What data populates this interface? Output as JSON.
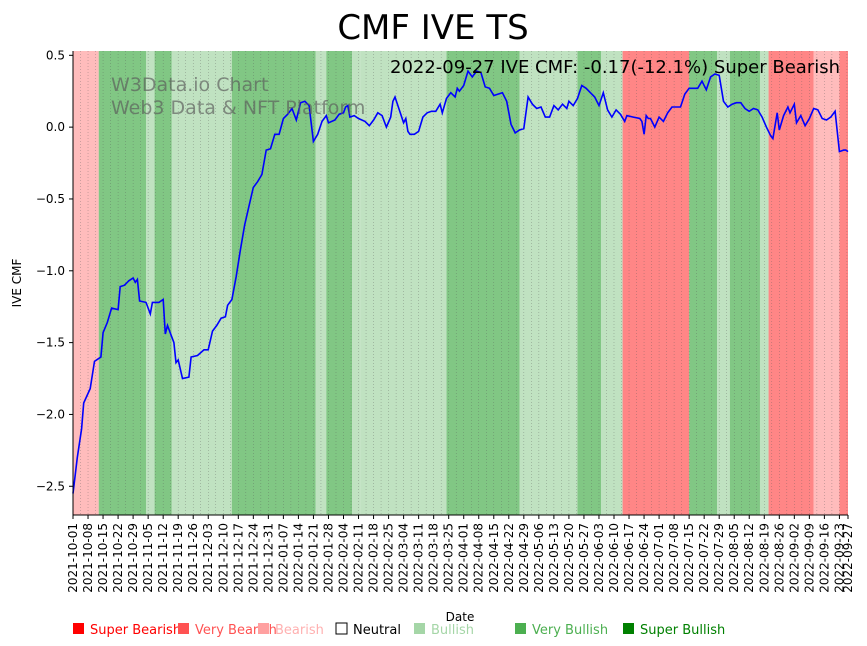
{
  "chart_data": {
    "type": "line",
    "title": "CMF IVE TS",
    "annotation": "2022-09-27 IVE CMF: -0.17(-12.1%) Super Bearish",
    "watermark": [
      "W3Data.io Chart",
      "Web3 Data & NFT Platform"
    ],
    "xlabel": "Date",
    "ylabel": "IVE CMF",
    "ylim": [
      -2.7,
      0.53
    ],
    "yticks": [
      0.5,
      0.0,
      -0.5,
      -1.0,
      -1.5,
      -2.0,
      -2.5
    ],
    "ytick_labels": [
      "0.5",
      "0.0",
      "−0.5",
      "−1.0",
      "−1.5",
      "−2.0",
      "−2.5"
    ],
    "x_domain_days": [
      0,
      361
    ],
    "xticks": [
      {
        "day": 0,
        "label": "2021-10-01"
      },
      {
        "day": 7,
        "label": "2021-10-08"
      },
      {
        "day": 14,
        "label": "2021-10-15"
      },
      {
        "day": 21,
        "label": "2021-10-22"
      },
      {
        "day": 28,
        "label": "2021-10-29"
      },
      {
        "day": 35,
        "label": "2021-11-05"
      },
      {
        "day": 42,
        "label": "2021-11-12"
      },
      {
        "day": 49,
        "label": "2021-11-19"
      },
      {
        "day": 56,
        "label": "2021-11-26"
      },
      {
        "day": 63,
        "label": "2021-12-03"
      },
      {
        "day": 70,
        "label": "2021-12-10"
      },
      {
        "day": 77,
        "label": "2021-12-17"
      },
      {
        "day": 84,
        "label": "2021-12-24"
      },
      {
        "day": 91,
        "label": "2021-12-31"
      },
      {
        "day": 98,
        "label": "2022-01-07"
      },
      {
        "day": 105,
        "label": "2022-01-14"
      },
      {
        "day": 112,
        "label": "2022-01-21"
      },
      {
        "day": 119,
        "label": "2022-01-28"
      },
      {
        "day": 126,
        "label": "2022-02-04"
      },
      {
        "day": 133,
        "label": "2022-02-11"
      },
      {
        "day": 140,
        "label": "2022-02-18"
      },
      {
        "day": 147,
        "label": "2022-02-25"
      },
      {
        "day": 154,
        "label": "2022-03-04"
      },
      {
        "day": 161,
        "label": "2022-03-11"
      },
      {
        "day": 168,
        "label": "2022-03-18"
      },
      {
        "day": 175,
        "label": "2022-03-25"
      },
      {
        "day": 182,
        "label": "2022-04-01"
      },
      {
        "day": 189,
        "label": "2022-04-08"
      },
      {
        "day": 196,
        "label": "2022-04-15"
      },
      {
        "day": 203,
        "label": "2022-04-22"
      },
      {
        "day": 210,
        "label": "2022-04-29"
      },
      {
        "day": 217,
        "label": "2022-05-06"
      },
      {
        "day": 224,
        "label": "2022-05-13"
      },
      {
        "day": 231,
        "label": "2022-05-20"
      },
      {
        "day": 238,
        "label": "2022-05-27"
      },
      {
        "day": 245,
        "label": "2022-06-03"
      },
      {
        "day": 252,
        "label": "2022-06-10"
      },
      {
        "day": 259,
        "label": "2022-06-17"
      },
      {
        "day": 266,
        "label": "2022-06-24"
      },
      {
        "day": 273,
        "label": "2022-07-01"
      },
      {
        "day": 280,
        "label": "2022-07-08"
      },
      {
        "day": 287,
        "label": "2022-07-15"
      },
      {
        "day": 294,
        "label": "2022-07-22"
      },
      {
        "day": 301,
        "label": "2022-07-29"
      },
      {
        "day": 308,
        "label": "2022-08-05"
      },
      {
        "day": 315,
        "label": "2022-08-12"
      },
      {
        "day": 322,
        "label": "2022-08-19"
      },
      {
        "day": 329,
        "label": "2022-08-26"
      },
      {
        "day": 336,
        "label": "2022-09-02"
      },
      {
        "day": 343,
        "label": "2022-09-09"
      },
      {
        "day": 350,
        "label": "2022-09-16"
      },
      {
        "day": 357,
        "label": "2022-09-23"
      },
      {
        "day": 361,
        "label": "2022-09-27"
      }
    ],
    "regimes": [
      {
        "start": 0,
        "end": 12,
        "state": "Bearish"
      },
      {
        "start": 12,
        "end": 34,
        "state": "Very Bullish"
      },
      {
        "start": 34,
        "end": 38,
        "state": "Bullish"
      },
      {
        "start": 38,
        "end": 46,
        "state": "Very Bullish"
      },
      {
        "start": 46,
        "end": 74,
        "state": "Bullish"
      },
      {
        "start": 74,
        "end": 113,
        "state": "Very Bullish"
      },
      {
        "start": 113,
        "end": 118,
        "state": "Bullish"
      },
      {
        "start": 118,
        "end": 130,
        "state": "Very Bullish"
      },
      {
        "start": 130,
        "end": 134,
        "state": "Bullish"
      },
      {
        "start": 134,
        "end": 174,
        "state": "Bullish"
      },
      {
        "start": 174,
        "end": 208,
        "state": "Very Bullish"
      },
      {
        "start": 208,
        "end": 235,
        "state": "Bullish"
      },
      {
        "start": 235,
        "end": 246,
        "state": "Very Bullish"
      },
      {
        "start": 246,
        "end": 256,
        "state": "Bullish"
      },
      {
        "start": 256,
        "end": 287,
        "state": "Very Bearish"
      },
      {
        "start": 287,
        "end": 300,
        "state": "Very Bullish"
      },
      {
        "start": 300,
        "end": 306,
        "state": "Bullish"
      },
      {
        "start": 306,
        "end": 320,
        "state": "Very Bullish"
      },
      {
        "start": 320,
        "end": 324,
        "state": "Bullish"
      },
      {
        "start": 324,
        "end": 345,
        "state": "Very Bearish"
      },
      {
        "start": 345,
        "end": 357,
        "state": "Bearish"
      },
      {
        "start": 357,
        "end": 361,
        "state": "Very Bearish"
      }
    ],
    "series": [
      {
        "name": "IVE CMF",
        "color": "#0000ff",
        "points": [
          [
            0,
            -2.55
          ],
          [
            2,
            -2.3
          ],
          [
            4,
            -2.1
          ],
          [
            5,
            -1.92
          ],
          [
            8,
            -1.82
          ],
          [
            10,
            -1.63
          ],
          [
            12,
            -1.61
          ],
          [
            13,
            -1.6
          ],
          [
            14,
            -1.43
          ],
          [
            16,
            -1.36
          ],
          [
            18,
            -1.26
          ],
          [
            21,
            -1.27
          ],
          [
            22,
            -1.11
          ],
          [
            24,
            -1.1
          ],
          [
            26,
            -1.07
          ],
          [
            28,
            -1.05
          ],
          [
            29,
            -1.08
          ],
          [
            30,
            -1.06
          ],
          [
            31,
            -1.21
          ],
          [
            34,
            -1.22
          ],
          [
            36,
            -1.3
          ],
          [
            37,
            -1.22
          ],
          [
            40,
            -1.22
          ],
          [
            42,
            -1.2
          ],
          [
            43,
            -1.44
          ],
          [
            44,
            -1.38
          ],
          [
            45,
            -1.42
          ],
          [
            47,
            -1.5
          ],
          [
            48,
            -1.64
          ],
          [
            49,
            -1.62
          ],
          [
            51,
            -1.75
          ],
          [
            54,
            -1.74
          ],
          [
            55,
            -1.6
          ],
          [
            58,
            -1.59
          ],
          [
            61,
            -1.55
          ],
          [
            63,
            -1.55
          ],
          [
            65,
            -1.42
          ],
          [
            67,
            -1.38
          ],
          [
            69,
            -1.33
          ],
          [
            71,
            -1.32
          ],
          [
            72,
            -1.24
          ],
          [
            74,
            -1.2
          ],
          [
            76,
            -1.04
          ],
          [
            78,
            -0.85
          ],
          [
            80,
            -0.68
          ],
          [
            82,
            -0.55
          ],
          [
            84,
            -0.42
          ],
          [
            86,
            -0.38
          ],
          [
            88,
            -0.33
          ],
          [
            90,
            -0.16
          ],
          [
            92,
            -0.15
          ],
          [
            94,
            -0.05
          ],
          [
            96,
            -0.05
          ],
          [
            98,
            0.06
          ],
          [
            100,
            0.09
          ],
          [
            102,
            0.13
          ],
          [
            104,
            0.05
          ],
          [
            106,
            0.17
          ],
          [
            108,
            0.18
          ],
          [
            110,
            0.15
          ],
          [
            112,
            -0.1
          ],
          [
            114,
            -0.05
          ],
          [
            116,
            0.04
          ],
          [
            118,
            0.08
          ],
          [
            119,
            0.03
          ],
          [
            122,
            0.05
          ],
          [
            124,
            0.09
          ],
          [
            126,
            0.1
          ],
          [
            127,
            0.14
          ],
          [
            128,
            0.15
          ],
          [
            129,
            0.07
          ],
          [
            131,
            0.08
          ],
          [
            133,
            0.06
          ],
          [
            136,
            0.04
          ],
          [
            138,
            0.01
          ],
          [
            140,
            0.05
          ],
          [
            142,
            0.1
          ],
          [
            144,
            0.08
          ],
          [
            146,
            0.0
          ],
          [
            148,
            0.07
          ],
          [
            149,
            0.18
          ],
          [
            150,
            0.21
          ],
          [
            152,
            0.12
          ],
          [
            154,
            0.03
          ],
          [
            155,
            0.06
          ],
          [
            156,
            -0.03
          ],
          [
            157,
            -0.05
          ],
          [
            159,
            -0.05
          ],
          [
            161,
            -0.03
          ],
          [
            163,
            0.07
          ],
          [
            165,
            0.1
          ],
          [
            167,
            0.11
          ],
          [
            169,
            0.11
          ],
          [
            171,
            0.16
          ],
          [
            172,
            0.1
          ],
          [
            174,
            0.2
          ],
          [
            176,
            0.24
          ],
          [
            178,
            0.21
          ],
          [
            179,
            0.27
          ],
          [
            180,
            0.25
          ],
          [
            182,
            0.29
          ],
          [
            184,
            0.39
          ],
          [
            186,
            0.35
          ],
          [
            188,
            0.39
          ],
          [
            190,
            0.38
          ],
          [
            192,
            0.28
          ],
          [
            194,
            0.27
          ],
          [
            196,
            0.22
          ],
          [
            198,
            0.23
          ],
          [
            200,
            0.24
          ],
          [
            202,
            0.18
          ],
          [
            204,
            0.02
          ],
          [
            206,
            -0.04
          ],
          [
            208,
            -0.02
          ],
          [
            210,
            -0.01
          ],
          [
            212,
            0.21
          ],
          [
            214,
            0.16
          ],
          [
            216,
            0.13
          ],
          [
            218,
            0.14
          ],
          [
            220,
            0.07
          ],
          [
            222,
            0.07
          ],
          [
            224,
            0.15
          ],
          [
            226,
            0.12
          ],
          [
            228,
            0.16
          ],
          [
            230,
            0.13
          ],
          [
            231,
            0.18
          ],
          [
            233,
            0.15
          ],
          [
            235,
            0.2
          ],
          [
            237,
            0.29
          ],
          [
            239,
            0.27
          ],
          [
            241,
            0.24
          ],
          [
            243,
            0.21
          ],
          [
            245,
            0.15
          ],
          [
            247,
            0.24
          ],
          [
            249,
            0.12
          ],
          [
            251,
            0.07
          ],
          [
            253,
            0.12
          ],
          [
            255,
            0.09
          ],
          [
            257,
            0.04
          ],
          [
            258,
            0.08
          ],
          [
            261,
            0.07
          ],
          [
            264,
            0.06
          ],
          [
            265,
            0.04
          ],
          [
            266,
            -0.05
          ],
          [
            267,
            0.08
          ],
          [
            268,
            0.06
          ],
          [
            269,
            0.06
          ],
          [
            271,
            0.0
          ],
          [
            273,
            0.07
          ],
          [
            275,
            0.04
          ],
          [
            277,
            0.1
          ],
          [
            279,
            0.14
          ],
          [
            281,
            0.14
          ],
          [
            283,
            0.14
          ],
          [
            285,
            0.23
          ],
          [
            287,
            0.27
          ],
          [
            289,
            0.27
          ],
          [
            291,
            0.27
          ],
          [
            293,
            0.32
          ],
          [
            295,
            0.26
          ],
          [
            297,
            0.35
          ],
          [
            299,
            0.37
          ],
          [
            301,
            0.36
          ],
          [
            303,
            0.18
          ],
          [
            305,
            0.14
          ],
          [
            307,
            0.16
          ],
          [
            309,
            0.17
          ],
          [
            311,
            0.17
          ],
          [
            313,
            0.13
          ],
          [
            315,
            0.11
          ],
          [
            317,
            0.13
          ],
          [
            319,
            0.12
          ],
          [
            321,
            0.07
          ],
          [
            323,
            0.0
          ],
          [
            325,
            -0.06
          ],
          [
            326,
            -0.08
          ],
          [
            328,
            0.1
          ],
          [
            329,
            -0.02
          ],
          [
            331,
            0.08
          ],
          [
            333,
            0.14
          ],
          [
            334,
            0.1
          ],
          [
            336,
            0.16
          ],
          [
            337,
            0.03
          ],
          [
            339,
            0.08
          ],
          [
            341,
            0.01
          ],
          [
            343,
            0.06
          ],
          [
            345,
            0.13
          ],
          [
            347,
            0.12
          ],
          [
            349,
            0.06
          ],
          [
            351,
            0.05
          ],
          [
            353,
            0.07
          ],
          [
            355,
            0.11
          ],
          [
            357,
            -0.17
          ],
          [
            359,
            -0.16
          ],
          [
            360,
            -0.16
          ],
          [
            361,
            -0.17
          ]
        ]
      }
    ],
    "state_colors": {
      "Super Bearish": "#ff0000",
      "Very Bearish": "#ff5252",
      "Bearish": "#ffa0a0",
      "Neutral": "#ffffff",
      "Bullish": "#a5d6a7",
      "Very Bullish": "#4caf50",
      "Super Bullish": "#008000"
    },
    "legend": [
      {
        "key": "Super Bearish",
        "label": "Super Bearish"
      },
      {
        "key": "Very Bearish",
        "label": "Very Bearish"
      },
      {
        "key": "Bearish",
        "label": "Bearish"
      },
      {
        "key": "Neutral",
        "label": "Neutral"
      },
      {
        "key": "Bullish",
        "label": "Bullish"
      },
      {
        "key": "Very Bullish",
        "label": "Very Bullish"
      },
      {
        "key": "Super Bullish",
        "label": "Super Bullish"
      }
    ],
    "legend_text_colors": {
      "Super Bearish": "#ff0000",
      "Very Bearish": "#ff5252",
      "Bearish": "#ffb0b0",
      "Neutral": "#000000",
      "Bullish": "#a5d6a7",
      "Very Bullish": "#4caf50",
      "Super Bullish": "#008000"
    }
  }
}
